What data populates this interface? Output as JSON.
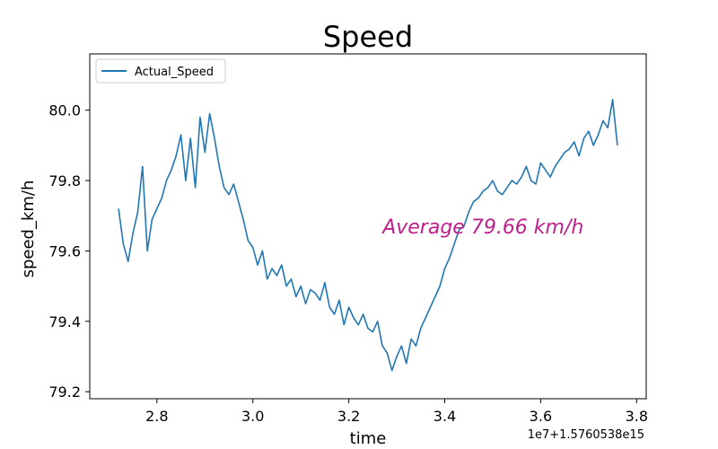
{
  "chart_data": {
    "type": "line",
    "title": "Speed",
    "xlabel": "time",
    "ylabel": "speed_km/h",
    "x_offset_label": "1e7+1.5760538e15",
    "xlim": [
      2.66,
      3.82
    ],
    "ylim": [
      79.18,
      80.16
    ],
    "xticks": [
      2.8,
      3.0,
      3.2,
      3.4,
      3.6,
      3.8
    ],
    "xtick_labels": [
      "2.8",
      "3.0",
      "3.2",
      "3.4",
      "3.6",
      "3.8"
    ],
    "yticks": [
      79.2,
      79.4,
      79.6,
      79.8,
      80.0
    ],
    "ytick_labels": [
      "79.2",
      "79.4",
      "79.6",
      "79.8",
      "80.0"
    ],
    "grid": false,
    "legend": {
      "position": "top-left"
    },
    "annotation": {
      "text": "Average 79.66 km/h",
      "x": 3.48,
      "y": 79.67,
      "color": "#bf1f8a"
    },
    "series": [
      {
        "name": "Actual_Speed",
        "color": "#1f77b4",
        "x": [
          2.72,
          2.73,
          2.74,
          2.75,
          2.76,
          2.77,
          2.78,
          2.79,
          2.8,
          2.81,
          2.82,
          2.83,
          2.84,
          2.85,
          2.86,
          2.87,
          2.88,
          2.89,
          2.9,
          2.91,
          2.92,
          2.93,
          2.94,
          2.95,
          2.96,
          2.97,
          2.98,
          2.99,
          3.0,
          3.01,
          3.02,
          3.03,
          3.04,
          3.05,
          3.06,
          3.07,
          3.08,
          3.09,
          3.1,
          3.11,
          3.12,
          3.13,
          3.14,
          3.15,
          3.16,
          3.17,
          3.18,
          3.19,
          3.2,
          3.21,
          3.22,
          3.23,
          3.24,
          3.25,
          3.26,
          3.27,
          3.28,
          3.29,
          3.3,
          3.31,
          3.32,
          3.33,
          3.34,
          3.35,
          3.36,
          3.37,
          3.38,
          3.39,
          3.4,
          3.41,
          3.42,
          3.43,
          3.44,
          3.45,
          3.46,
          3.47,
          3.48,
          3.49,
          3.5,
          3.51,
          3.52,
          3.53,
          3.54,
          3.55,
          3.56,
          3.57,
          3.58,
          3.59,
          3.6,
          3.61,
          3.62,
          3.63,
          3.64,
          3.65,
          3.66,
          3.67,
          3.68,
          3.69,
          3.7,
          3.71,
          3.72,
          3.73,
          3.74,
          3.75,
          3.76
        ],
        "values": [
          79.72,
          79.62,
          79.57,
          79.65,
          79.71,
          79.84,
          79.6,
          79.69,
          79.72,
          79.75,
          79.8,
          79.83,
          79.87,
          79.93,
          79.8,
          79.92,
          79.78,
          79.98,
          79.88,
          79.99,
          79.92,
          79.84,
          79.78,
          79.76,
          79.79,
          79.74,
          79.69,
          79.63,
          79.61,
          79.56,
          79.6,
          79.52,
          79.55,
          79.53,
          79.56,
          79.5,
          79.52,
          79.47,
          79.5,
          79.45,
          79.49,
          79.48,
          79.46,
          79.51,
          79.44,
          79.42,
          79.46,
          79.39,
          79.44,
          79.41,
          79.39,
          79.42,
          79.38,
          79.37,
          79.4,
          79.33,
          79.31,
          79.26,
          79.3,
          79.33,
          79.28,
          79.35,
          79.33,
          79.38,
          79.41,
          79.44,
          79.47,
          79.5,
          79.55,
          79.58,
          79.62,
          79.66,
          79.67,
          79.71,
          79.74,
          79.75,
          79.77,
          79.78,
          79.8,
          79.77,
          79.76,
          79.78,
          79.8,
          79.79,
          79.81,
          79.84,
          79.8,
          79.79,
          79.85,
          79.83,
          79.81,
          79.84,
          79.86,
          79.88,
          79.89,
          79.91,
          79.87,
          79.92,
          79.94,
          79.9,
          79.93,
          79.97,
          79.95,
          80.03,
          79.9
        ]
      }
    ]
  }
}
